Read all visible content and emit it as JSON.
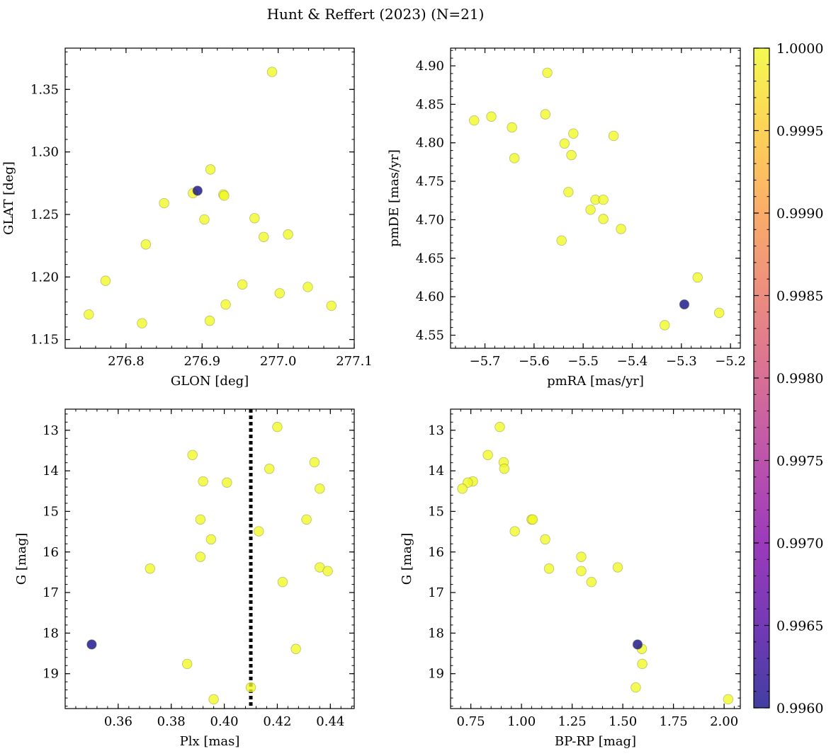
{
  "figure": {
    "title": "Hunt & Reffert (2023) (N=21)"
  },
  "colorbar": {
    "colormap": "plasma",
    "range": [
      0.996,
      1.0
    ],
    "tick_values": [
      0.996,
      0.9965,
      0.997,
      0.9975,
      0.998,
      0.9985,
      0.999,
      0.9995,
      1.0
    ],
    "tick_labels": [
      "0.9960",
      "0.9965",
      "0.9970",
      "0.9975",
      "0.9980",
      "0.9985",
      "0.9990",
      "0.9995",
      "1.0000"
    ]
  },
  "chart_data": [
    {
      "type": "scatter",
      "xlabel": "GLON [deg]",
      "ylabel": "GLAT [deg]",
      "xlim": [
        276.72,
        277.1
      ],
      "ylim": [
        1.143,
        1.383
      ],
      "x_ticks": [
        276.8,
        276.9,
        277.0,
        277.1
      ],
      "x_tick_labels": [
        "276.8",
        "276.9",
        "277.0",
        "277.1"
      ],
      "y_ticks": [
        1.15,
        1.2,
        1.25,
        1.3,
        1.35
      ],
      "y_tick_labels": [
        "1.15",
        "1.20",
        "1.25",
        "1.30",
        "1.35"
      ],
      "y_inverted": false,
      "points": [
        {
          "x": 276.992,
          "y": 1.364,
          "c": 1.0
        },
        {
          "x": 276.911,
          "y": 1.286,
          "c": 1.0
        },
        {
          "x": 276.888,
          "y": 1.267,
          "c": 1.0
        },
        {
          "x": 276.928,
          "y": 1.266,
          "c": 1.0
        },
        {
          "x": 276.929,
          "y": 1.265,
          "c": 1.0
        },
        {
          "x": 276.85,
          "y": 1.259,
          "c": 1.0
        },
        {
          "x": 276.969,
          "y": 1.247,
          "c": 1.0
        },
        {
          "x": 276.903,
          "y": 1.246,
          "c": 1.0
        },
        {
          "x": 277.013,
          "y": 1.234,
          "c": 1.0
        },
        {
          "x": 276.981,
          "y": 1.232,
          "c": 1.0
        },
        {
          "x": 276.826,
          "y": 1.226,
          "c": 1.0
        },
        {
          "x": 276.773,
          "y": 1.197,
          "c": 1.0
        },
        {
          "x": 276.953,
          "y": 1.194,
          "c": 1.0
        },
        {
          "x": 277.039,
          "y": 1.192,
          "c": 1.0
        },
        {
          "x": 277.002,
          "y": 1.187,
          "c": 1.0
        },
        {
          "x": 276.931,
          "y": 1.178,
          "c": 1.0
        },
        {
          "x": 277.07,
          "y": 1.177,
          "c": 1.0
        },
        {
          "x": 276.751,
          "y": 1.17,
          "c": 1.0
        },
        {
          "x": 276.91,
          "y": 1.165,
          "c": 1.0
        },
        {
          "x": 276.821,
          "y": 1.163,
          "c": 1.0
        },
        {
          "x": 276.894,
          "y": 1.269,
          "c": 0.996
        }
      ]
    },
    {
      "type": "scatter",
      "xlabel": "pmRA [mas/yr]",
      "ylabel": "pmDE [mas/yr]",
      "xlim": [
        -5.77,
        -5.18
      ],
      "ylim": [
        4.533,
        4.923
      ],
      "x_ticks": [
        -5.7,
        -5.6,
        -5.5,
        -5.4,
        -5.3,
        -5.2
      ],
      "x_tick_labels": [
        "−5.7",
        "−5.6",
        "−5.5",
        "−5.4",
        "−5.3",
        "−5.2"
      ],
      "y_ticks": [
        4.55,
        4.6,
        4.65,
        4.7,
        4.75,
        4.8,
        4.85,
        4.9
      ],
      "y_tick_labels": [
        "4.55",
        "4.60",
        "4.65",
        "4.70",
        "4.75",
        "4.80",
        "4.85",
        "4.90"
      ],
      "y_inverted": false,
      "points": [
        {
          "x": -5.573,
          "y": 4.891,
          "c": 1.0
        },
        {
          "x": -5.577,
          "y": 4.837,
          "c": 1.0
        },
        {
          "x": -5.687,
          "y": 4.834,
          "c": 1.0
        },
        {
          "x": -5.722,
          "y": 4.829,
          "c": 1.0
        },
        {
          "x": -5.645,
          "y": 4.82,
          "c": 1.0
        },
        {
          "x": -5.52,
          "y": 4.812,
          "c": 1.0
        },
        {
          "x": -5.438,
          "y": 4.809,
          "c": 1.0
        },
        {
          "x": -5.538,
          "y": 4.799,
          "c": 1.0
        },
        {
          "x": -5.524,
          "y": 4.784,
          "c": 1.0
        },
        {
          "x": -5.64,
          "y": 4.78,
          "c": 1.0
        },
        {
          "x": -5.53,
          "y": 4.736,
          "c": 1.0
        },
        {
          "x": -5.475,
          "y": 4.726,
          "c": 1.0
        },
        {
          "x": -5.459,
          "y": 4.726,
          "c": 1.0
        },
        {
          "x": -5.485,
          "y": 4.713,
          "c": 1.0
        },
        {
          "x": -5.459,
          "y": 4.701,
          "c": 1.0
        },
        {
          "x": -5.423,
          "y": 4.688,
          "c": 1.0
        },
        {
          "x": -5.544,
          "y": 4.673,
          "c": 1.0
        },
        {
          "x": -5.267,
          "y": 4.625,
          "c": 1.0
        },
        {
          "x": -5.223,
          "y": 4.579,
          "c": 1.0
        },
        {
          "x": -5.334,
          "y": 4.563,
          "c": 1.0
        },
        {
          "x": -5.294,
          "y": 4.59,
          "c": 0.996
        }
      ]
    },
    {
      "type": "scatter",
      "xlabel": "Plx [mas]",
      "ylabel": "G [mag]",
      "xlim": [
        0.34,
        0.449
      ],
      "ylim": [
        12.48,
        19.86
      ],
      "x_ticks": [
        0.36,
        0.38,
        0.4,
        0.42,
        0.44
      ],
      "x_tick_labels": [
        "0.36",
        "0.38",
        "0.40",
        "0.42",
        "0.44"
      ],
      "y_ticks": [
        13,
        14,
        15,
        16,
        17,
        18,
        19
      ],
      "y_tick_labels": [
        "13",
        "14",
        "15",
        "16",
        "17",
        "18",
        "19"
      ],
      "y_inverted": true,
      "vline": 0.41,
      "points": [
        {
          "x": 0.42,
          "y": 12.92,
          "c": 1.0
        },
        {
          "x": 0.388,
          "y": 13.61,
          "c": 1.0
        },
        {
          "x": 0.434,
          "y": 13.79,
          "c": 1.0
        },
        {
          "x": 0.417,
          "y": 13.95,
          "c": 1.0
        },
        {
          "x": 0.392,
          "y": 14.26,
          "c": 1.0
        },
        {
          "x": 0.401,
          "y": 14.29,
          "c": 1.0
        },
        {
          "x": 0.436,
          "y": 14.44,
          "c": 1.0
        },
        {
          "x": 0.413,
          "y": 15.49,
          "c": 1.0
        },
        {
          "x": 0.391,
          "y": 15.2,
          "c": 1.0
        },
        {
          "x": 0.431,
          "y": 15.2,
          "c": 1.0
        },
        {
          "x": 0.395,
          "y": 15.69,
          "c": 1.0
        },
        {
          "x": 0.391,
          "y": 16.12,
          "c": 1.0
        },
        {
          "x": 0.436,
          "y": 16.38,
          "c": 1.0
        },
        {
          "x": 0.372,
          "y": 16.41,
          "c": 1.0
        },
        {
          "x": 0.439,
          "y": 16.47,
          "c": 1.0
        },
        {
          "x": 0.422,
          "y": 16.74,
          "c": 1.0
        },
        {
          "x": 0.427,
          "y": 18.39,
          "c": 1.0
        },
        {
          "x": 0.386,
          "y": 18.76,
          "c": 1.0
        },
        {
          "x": 0.41,
          "y": 19.34,
          "c": 1.0
        },
        {
          "x": 0.396,
          "y": 19.63,
          "c": 1.0
        },
        {
          "x": 0.35,
          "y": 18.28,
          "c": 0.996
        }
      ]
    },
    {
      "type": "scatter",
      "xlabel": "BP-RP [mag]",
      "ylabel": "G [mag]",
      "xlim": [
        0.65,
        2.08
      ],
      "ylim": [
        12.48,
        19.86
      ],
      "x_ticks": [
        0.75,
        1.0,
        1.25,
        1.5,
        1.75,
        2.0
      ],
      "x_tick_labels": [
        "0.75",
        "1.00",
        "1.25",
        "1.50",
        "1.75",
        "2.00"
      ],
      "y_ticks": [
        13,
        14,
        15,
        16,
        17,
        18,
        19
      ],
      "y_tick_labels": [
        "13",
        "14",
        "15",
        "16",
        "17",
        "18",
        "19"
      ],
      "y_inverted": true,
      "points": [
        {
          "x": 0.893,
          "y": 12.92,
          "c": 1.0
        },
        {
          "x": 0.834,
          "y": 13.61,
          "c": 1.0
        },
        {
          "x": 0.912,
          "y": 13.79,
          "c": 1.0
        },
        {
          "x": 0.915,
          "y": 13.95,
          "c": 1.0
        },
        {
          "x": 0.76,
          "y": 14.26,
          "c": 1.0
        },
        {
          "x": 0.735,
          "y": 14.29,
          "c": 1.0
        },
        {
          "x": 0.708,
          "y": 14.44,
          "c": 1.0
        },
        {
          "x": 1.05,
          "y": 15.2,
          "c": 1.0
        },
        {
          "x": 1.055,
          "y": 15.2,
          "c": 1.0
        },
        {
          "x": 0.967,
          "y": 15.49,
          "c": 1.0
        },
        {
          "x": 1.117,
          "y": 15.69,
          "c": 1.0
        },
        {
          "x": 1.295,
          "y": 16.12,
          "c": 1.0
        },
        {
          "x": 1.475,
          "y": 16.38,
          "c": 1.0
        },
        {
          "x": 1.136,
          "y": 16.41,
          "c": 1.0
        },
        {
          "x": 1.295,
          "y": 16.47,
          "c": 1.0
        },
        {
          "x": 1.345,
          "y": 16.74,
          "c": 1.0
        },
        {
          "x": 1.594,
          "y": 18.39,
          "c": 1.0
        },
        {
          "x": 1.596,
          "y": 18.76,
          "c": 1.0
        },
        {
          "x": 1.564,
          "y": 19.34,
          "c": 1.0
        },
        {
          "x": 2.02,
          "y": 19.63,
          "c": 1.0
        },
        {
          "x": 1.573,
          "y": 18.28,
          "c": 0.996
        }
      ]
    }
  ]
}
